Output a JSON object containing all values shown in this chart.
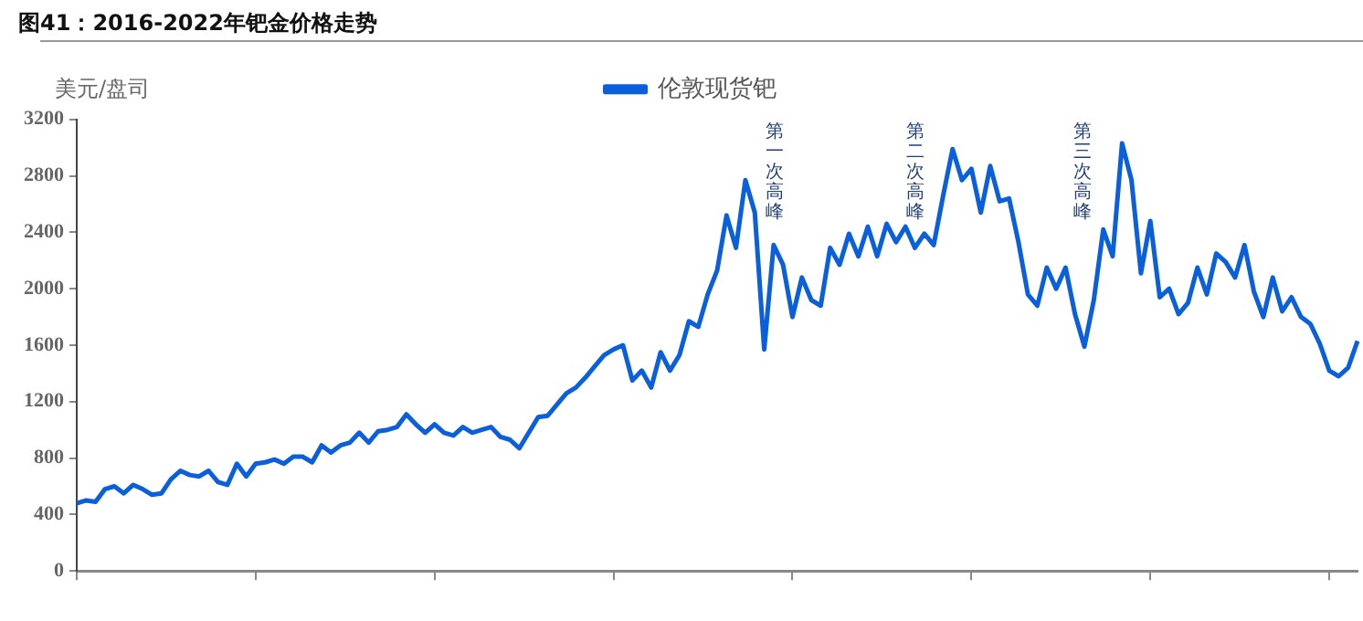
{
  "chart_data": {
    "type": "line",
    "title": "图41：2016-2022年钯金价格走势",
    "ylabel": "美元/盘司",
    "legend": "top",
    "categories": [
      null,
      null,
      null,
      null,
      null,
      null,
      null,
      null,
      null,
      null,
      null,
      null,
      null,
      null,
      null,
      null,
      null,
      null,
      null,
      null,
      null,
      null,
      null,
      null,
      null,
      null,
      null,
      null,
      null,
      null,
      null,
      null,
      null,
      null,
      null,
      null,
      null,
      null,
      null,
      null,
      null,
      null,
      null,
      null,
      null,
      null,
      null,
      null,
      null,
      null,
      null,
      null,
      null,
      null,
      null,
      null,
      null,
      null,
      null,
      null,
      null,
      null,
      null,
      null,
      null,
      null,
      null,
      null,
      null,
      null,
      null,
      null,
      null,
      null,
      null,
      null,
      null,
      null,
      null,
      null,
      null,
      null,
      null,
      null,
      null,
      null,
      null,
      null,
      null,
      null,
      null,
      null,
      null,
      null,
      null,
      null,
      null,
      null,
      null,
      null,
      null,
      null,
      null,
      null,
      null,
      null,
      null,
      null,
      null,
      null,
      null,
      null,
      null,
      null,
      null,
      null,
      null,
      null,
      null,
      null,
      null,
      null,
      null,
      null,
      null,
      null,
      null,
      null,
      null,
      null,
      null,
      null,
      null,
      null,
      null,
      null,
      null
    ],
    "series": [
      {
        "name": "伦敦现货钯",
        "color": "#0a5fdc",
        "values": [
          480,
          500,
          490,
          580,
          600,
          550,
          610,
          580,
          540,
          550,
          650,
          710,
          680,
          670,
          710,
          630,
          610,
          760,
          670,
          760,
          770,
          790,
          760,
          810,
          810,
          770,
          890,
          840,
          890,
          910,
          980,
          910,
          990,
          1000,
          1020,
          1110,
          1040,
          980,
          1040,
          980,
          960,
          1020,
          980,
          1000,
          1020,
          950,
          930,
          870,
          980,
          1090,
          1100,
          1180,
          1260,
          1300,
          1370,
          1450,
          1530,
          1570,
          1600,
          1350,
          1420,
          1300,
          1550,
          1420,
          1530,
          1770,
          1730,
          1960,
          2130,
          2520,
          2290,
          2770,
          2540,
          1570,
          2310,
          2170,
          1800,
          2080,
          1920,
          1880,
          2290,
          2170,
          2390,
          2230,
          2440,
          2230,
          2460,
          2330,
          2440,
          2290,
          2390,
          2310,
          2660,
          2990,
          2770,
          2850,
          2540,
          2870,
          2620,
          2640,
          2330,
          1960,
          1880,
          2150,
          2000,
          2150,
          1820,
          1590,
          1920,
          2420,
          2230,
          3030,
          2770,
          2110,
          2480,
          1940,
          2000,
          1820,
          1900,
          2150,
          1960,
          2250,
          2190,
          2080,
          2310,
          1980,
          1800,
          2080,
          1840,
          1940,
          1800,
          1750,
          1610,
          1420,
          1380,
          1440,
          1630
        ]
      }
    ],
    "ylim": [
      0,
      3200
    ],
    "yticks": [
      0,
      400,
      800,
      1200,
      1600,
      2000,
      2400,
      2800,
      3200
    ],
    "grid": false,
    "annotations": [
      "第一次高峰",
      "第二次高峰",
      "第三次高峰"
    ]
  }
}
